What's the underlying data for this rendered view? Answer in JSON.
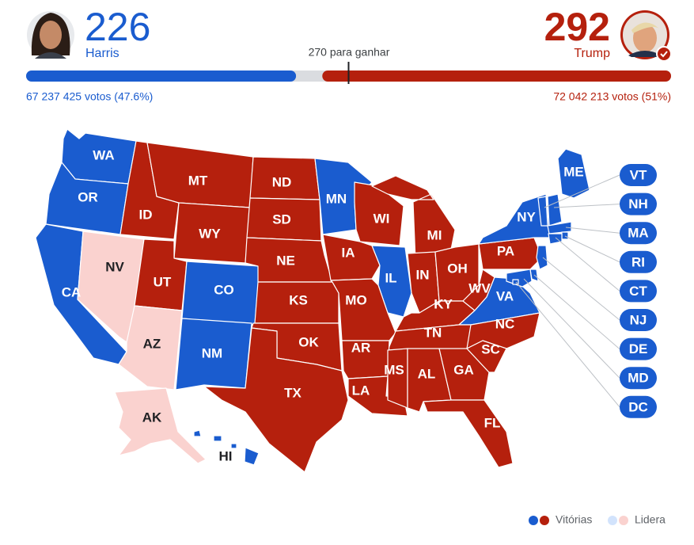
{
  "header": {
    "harris": {
      "votes": 226,
      "name": "Harris",
      "popular": "67 237 425 votos (47.6%)",
      "color": "#1a5ccf"
    },
    "trump": {
      "votes": 292,
      "name": "Trump",
      "popular": "72 042 213 votos (51%)",
      "color": "#b5200d"
    },
    "threshold": {
      "value": 270,
      "label": "270 para ganhar"
    }
  },
  "map": {
    "states": [
      {
        "label": "WA",
        "color": "#1a5ccf"
      },
      {
        "label": "OR",
        "color": "#1a5ccf"
      },
      {
        "label": "CA",
        "color": "#1a5ccf"
      },
      {
        "label": "NV",
        "color": "#fad2cf"
      },
      {
        "label": "ID",
        "color": "#b5200d"
      },
      {
        "label": "MT",
        "color": "#b5200d"
      },
      {
        "label": "WY",
        "color": "#b5200d"
      },
      {
        "label": "UT",
        "color": "#b5200d"
      },
      {
        "label": "AZ",
        "color": "#fad2cf"
      },
      {
        "label": "CO",
        "color": "#1a5ccf"
      },
      {
        "label": "NM",
        "color": "#1a5ccf"
      },
      {
        "label": "ND",
        "color": "#b5200d"
      },
      {
        "label": "SD",
        "color": "#b5200d"
      },
      {
        "label": "NE",
        "color": "#b5200d"
      },
      {
        "label": "KS",
        "color": "#b5200d"
      },
      {
        "label": "OK",
        "color": "#b5200d"
      },
      {
        "label": "TX",
        "color": "#b5200d"
      },
      {
        "label": "MN",
        "color": "#1a5ccf"
      },
      {
        "label": "WI",
        "color": "#b5200d"
      },
      {
        "label": "MI",
        "color": "#b5200d"
      },
      {
        "label": "IA",
        "color": "#b5200d"
      },
      {
        "label": "IL",
        "color": "#1a5ccf"
      },
      {
        "label": "IN",
        "color": "#b5200d"
      },
      {
        "label": "OH",
        "color": "#b5200d"
      },
      {
        "label": "MO",
        "color": "#b5200d"
      },
      {
        "label": "KY",
        "color": "#b5200d"
      },
      {
        "label": "WV",
        "color": "#b5200d"
      },
      {
        "label": "PA",
        "color": "#b5200d"
      },
      {
        "label": "NY",
        "color": "#1a5ccf"
      },
      {
        "label": "VA",
        "color": "#1a5ccf"
      },
      {
        "label": "TN",
        "color": "#b5200d"
      },
      {
        "label": "NC",
        "color": "#b5200d"
      },
      {
        "label": "AR",
        "color": "#b5200d"
      },
      {
        "label": "LA",
        "color": "#b5200d"
      },
      {
        "label": "MS",
        "color": "#b5200d"
      },
      {
        "label": "AL",
        "color": "#b5200d"
      },
      {
        "label": "GA",
        "color": "#b5200d"
      },
      {
        "label": "SC",
        "color": "#b5200d"
      },
      {
        "label": "FL",
        "color": "#b5200d"
      },
      {
        "label": "ME",
        "color": "#1a5ccf"
      },
      {
        "label": "VT",
        "color": "#1a5ccf"
      },
      {
        "label": "NH",
        "color": "#1a5ccf"
      },
      {
        "label": "MA",
        "color": "#1a5ccf"
      },
      {
        "label": "RI",
        "color": "#1a5ccf"
      },
      {
        "label": "CT",
        "color": "#1a5ccf"
      },
      {
        "label": "NJ",
        "color": "#1a5ccf"
      },
      {
        "label": "DE",
        "color": "#1a5ccf"
      },
      {
        "label": "MD",
        "color": "#1a5ccf"
      },
      {
        "label": "DC",
        "color": "#1a5ccf"
      },
      {
        "label": "AK",
        "color": "#fad2cf"
      },
      {
        "label": "HI",
        "color": "#1a5ccf"
      }
    ]
  },
  "legend": {
    "wins": {
      "label": "Vitórias",
      "colors": [
        "#1a5ccf",
        "#b5200d"
      ]
    },
    "leads": {
      "label": "Lidera",
      "colors": [
        "#d2e3fc",
        "#fad2cf"
      ]
    }
  }
}
